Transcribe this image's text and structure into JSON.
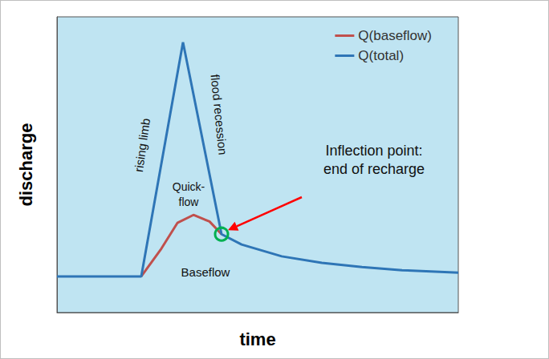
{
  "chart_data": {
    "type": "line",
    "x_label": "time",
    "y_label": "discharge",
    "xlim": [
      0,
      100
    ],
    "ylim": [
      0,
      100
    ],
    "tick_labels": false,
    "grid": false,
    "legend": "top right",
    "series": [
      {
        "name": "Q(baseflow)",
        "color": "#c0504d",
        "x": [
          21,
          26,
          30,
          34,
          38,
          41
        ],
        "values": [
          12.2,
          21.6,
          30.3,
          33,
          30.8,
          26.5
        ]
      },
      {
        "name": "Q(total)",
        "color": "#2e75b6",
        "x": [
          0,
          21,
          31.4,
          41,
          46,
          56,
          66,
          76,
          86,
          100
        ],
        "values": [
          12.2,
          12.2,
          91.4,
          26.5,
          23,
          19,
          16.8,
          15.4,
          14.3,
          13.5
        ]
      }
    ],
    "annotations": [
      "rising limb",
      "flood recession",
      "Quick-\nflow",
      "Baseflow",
      "Inflection point:\nend of recharge"
    ]
  }
}
